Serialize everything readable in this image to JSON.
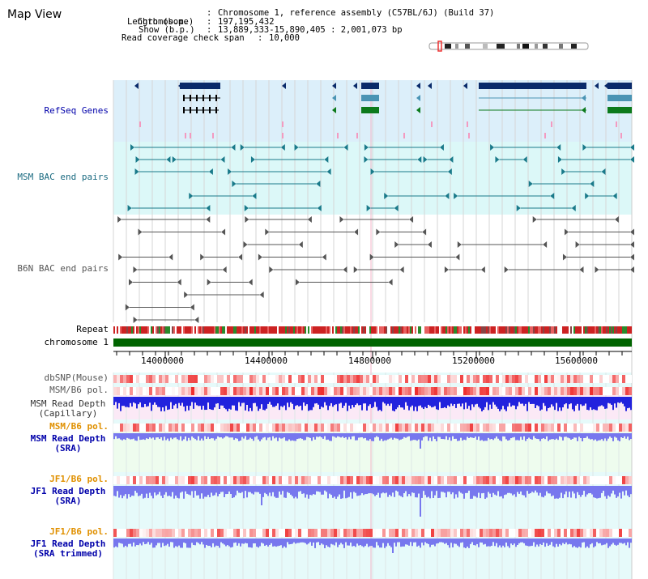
{
  "page": {
    "title": "Map View"
  },
  "header": {
    "chromosome_label": "Chromosome",
    "chromosome_value": "Chromosome 1, reference assembly (C57BL/6J) (Build 37)",
    "length_label": "Length (b.p.)",
    "length_value": "197,195,432",
    "show_label": "Show (b.p.)",
    "show_value": "13,889,333-15,890,405 : 2,001,073 bp",
    "coverage_label": "Read coverage check span",
    "coverage_value": "10,000",
    "separator": ":"
  },
  "tracks": {
    "refseq": "RefSeq Genes",
    "msm_bac": "MSM BAC end pairs",
    "b6n_bac": "B6N BAC end pairs",
    "repeat": "Repeat",
    "chromosome": "chromosome 1",
    "dbsnp": "dbSNP(Mouse)",
    "msm_b6_pol_1": "MSM/B6 pol.",
    "msm_depth_cap_1": "MSM Read Depth",
    "msm_depth_cap_2": "(Capillary)",
    "msm_b6_pol_2": "MSM/B6 pol.",
    "msm_depth_sra_1": "MSM Read Depth",
    "msm_depth_sra_2": "(SRA)",
    "jf1_b6_pol_1": "JF1/B6 pol.",
    "jf1_depth_sra_1": "JF1 Read Depth",
    "jf1_depth_sra_2": "(SRA)",
    "jf1_b6_pol_2": "JF1/B6 pol.",
    "jf1_depth_trim_1": "JF1 Read Depth",
    "jf1_depth_trim_2": "(SRA trimmed)"
  },
  "axis": {
    "ticks": [
      "14000000",
      "14400000",
      "14800000",
      "15200000",
      "15600000"
    ]
  },
  "colors": {
    "refseq_bg": "#dceffa",
    "msm_bg": "#dcf8f8",
    "b6n_bg": "#ffffff",
    "gene_dark": "#0a2a6a",
    "gene_mid": "#4a94b4",
    "gene_green": "#0c7a1c",
    "bac_msm": "#1a7a8a",
    "bac_b6n": "#555555",
    "chrom_bar": "#006400",
    "depth_blue": "#2222dd",
    "depth_light": "#7777ee",
    "label_navy": "#0000aa",
    "label_orange": "#e09000",
    "label_teal": "#1a6a80"
  }
}
